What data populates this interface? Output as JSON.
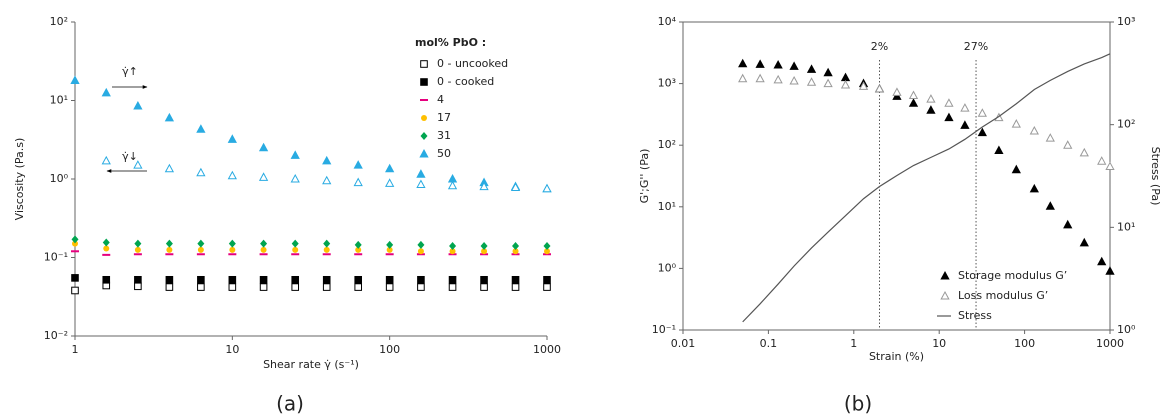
{
  "chart_data": [
    {
      "type": "scatter",
      "caption": "(a)",
      "xlabel": "Shear rate γ̇ (s⁻¹)",
      "ylabel": "Viscosity (Pa.s)",
      "log_x": true,
      "log_y": true,
      "xlim": [
        1,
        1000
      ],
      "xticks": [
        1,
        10,
        100,
        1000
      ],
      "ylim": [
        0.01,
        100
      ],
      "yticks": [
        {
          "value": 0.01,
          "label": "10⁻²"
        },
        {
          "value": 0.1,
          "label": "10⁻¹"
        },
        {
          "value": 1,
          "label": "10⁰"
        },
        {
          "value": 10,
          "label": "10¹"
        },
        {
          "value": 100,
          "label": "10²"
        }
      ],
      "legend_title": "mol% PbO :",
      "legend": "upper right",
      "annotations": [
        "γ̇↑",
        "γ̇↓"
      ],
      "x": [
        1,
        1.58,
        2.51,
        3.98,
        6.31,
        10,
        15.8,
        25.1,
        39.8,
        63.1,
        100,
        158,
        251,
        398,
        631,
        1000
      ],
      "series": [
        {
          "name": "0 - uncooked",
          "color": "#000000",
          "marker": "open-square",
          "values": [
            0.038,
            0.044,
            0.043,
            0.042,
            0.042,
            0.042,
            0.042,
            0.042,
            0.042,
            0.042,
            0.042,
            0.042,
            0.042,
            0.042,
            0.042,
            0.042
          ]
        },
        {
          "name": "0 - cooked",
          "color": "#000000",
          "marker": "filled-square",
          "values": [
            0.055,
            0.052,
            0.052,
            0.052,
            0.052,
            0.052,
            0.052,
            0.052,
            0.052,
            0.052,
            0.052,
            0.052,
            0.052,
            0.052,
            0.052,
            0.052
          ]
        },
        {
          "name": "4",
          "color": "#e6007e",
          "marker": "dash",
          "values": [
            0.12,
            0.108,
            0.11,
            0.11,
            0.11,
            0.11,
            0.11,
            0.11,
            0.11,
            0.11,
            0.11,
            0.11,
            0.11,
            0.11,
            0.11,
            0.11
          ]
        },
        {
          "name": "17",
          "color": "#ffc000",
          "marker": "circle",
          "values": [
            0.15,
            0.13,
            0.125,
            0.125,
            0.125,
            0.125,
            0.125,
            0.125,
            0.125,
            0.125,
            0.125,
            0.12,
            0.12,
            0.12,
            0.12,
            0.12
          ]
        },
        {
          "name": "31",
          "color": "#00a550",
          "marker": "diamond",
          "values": [
            0.17,
            0.155,
            0.15,
            0.15,
            0.15,
            0.15,
            0.15,
            0.15,
            0.15,
            0.145,
            0.145,
            0.145,
            0.14,
            0.14,
            0.14,
            0.14
          ]
        },
        {
          "name": "50",
          "color": "#29abe2",
          "marker": "triangle",
          "values": [
            18,
            12.5,
            8.5,
            6,
            4.3,
            3.2,
            2.5,
            2.0,
            1.7,
            1.5,
            1.35,
            1.15,
            1.0,
            0.9,
            0.8,
            0.75
          ]
        },
        {
          "color": "#29abe2",
          "marker": "open-triangle",
          "values": [
            null,
            1.7,
            1.5,
            1.35,
            1.2,
            1.1,
            1.05,
            1.0,
            0.95,
            0.9,
            0.88,
            0.85,
            0.82,
            0.8,
            0.78,
            0.75
          ]
        }
      ]
    },
    {
      "type": "scatter",
      "caption": "(b)",
      "xlabel": "Strain (%)",
      "ylabel": "G';G'' (Pa)",
      "y2label": "Stress (Pa)",
      "log_x": true,
      "log_y": true,
      "xlim": [
        0.01,
        1000
      ],
      "xticks": [
        0.01,
        0.1,
        1,
        10,
        100,
        1000
      ],
      "ylim": [
        0.1,
        10000
      ],
      "yticks": [
        {
          "value": 0.1,
          "label": "10⁻¹"
        },
        {
          "value": 1,
          "label": "10⁰"
        },
        {
          "value": 10,
          "label": "10¹"
        },
        {
          "value": 100,
          "label": "10²"
        },
        {
          "value": 1000,
          "label": "10³"
        },
        {
          "value": 10000,
          "label": "10⁴"
        }
      ],
      "y2lim": [
        1,
        1000
      ],
      "y2ticks": [
        {
          "value": 1,
          "label": "10⁰"
        },
        {
          "value": 10,
          "label": "10¹"
        },
        {
          "value": 100,
          "label": "10²"
        },
        {
          "value": 1000,
          "label": "10³"
        }
      ],
      "legend": "lower right",
      "reference_lines": [
        {
          "x": 2,
          "label": "2%"
        },
        {
          "x": 27,
          "label": "27%"
        }
      ],
      "x": [
        0.05,
        0.08,
        0.13,
        0.2,
        0.32,
        0.5,
        0.8,
        1.3,
        2,
        3.2,
        5,
        8,
        13,
        20,
        32,
        50,
        80,
        130,
        200,
        320,
        500,
        800,
        1000
      ],
      "series": [
        {
          "name": "Storage modulus G’",
          "color": "#000000",
          "marker": "triangle",
          "values": [
            2100,
            2050,
            2000,
            1900,
            1700,
            1500,
            1250,
            1000,
            820,
            620,
            480,
            370,
            280,
            210,
            160,
            82,
            40,
            19.5,
            10.2,
            5.1,
            2.6,
            1.28,
            0.9
          ]
        },
        {
          "name": "Loss modulus G’",
          "color": "#999999",
          "marker": "open-triangle",
          "values": [
            1200,
            1200,
            1150,
            1100,
            1050,
            1000,
            950,
            900,
            820,
            720,
            640,
            560,
            480,
            400,
            330,
            280,
            220,
            170,
            130,
            100,
            75,
            55,
            45
          ]
        },
        {
          "name": "Stress",
          "color": "#555555",
          "marker": "line",
          "axis": "y2",
          "values": [
            1.2,
            1.8,
            2.8,
            4.2,
            6.3,
            9,
            13,
            19,
            25,
            32,
            40,
            48,
            58,
            72,
            95,
            120,
            160,
            220,
            270,
            330,
            390,
            450,
            490
          ]
        }
      ]
    }
  ]
}
